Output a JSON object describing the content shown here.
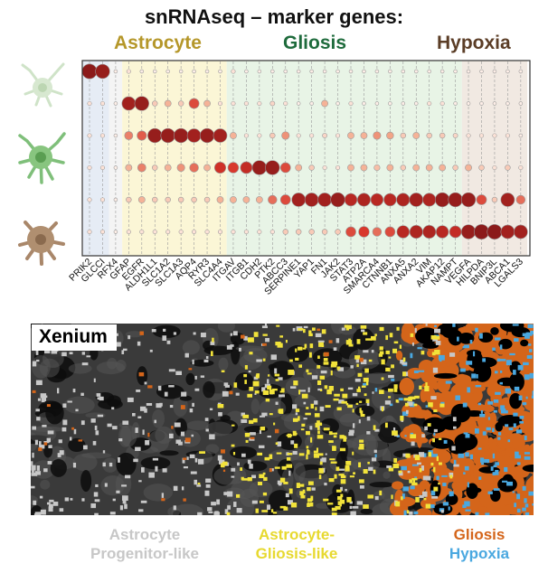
{
  "title": "snRNAseq – marker genes:",
  "categories": [
    {
      "label": "Astrocyte",
      "color": "#b5972a"
    },
    {
      "label": "Gliosis",
      "color": "#1e6b3c"
    },
    {
      "label": "Hypoxia",
      "color": "#5b3d26"
    }
  ],
  "genes": [
    "PRIK2",
    "GLCCI",
    "RFX4",
    "GFAP",
    "EGFR",
    "ALDH1L1",
    "SLC1A2",
    "SLC1A3",
    "AQP4",
    "RYR3",
    "SLC4A4",
    "ITGAV",
    "ITGB1",
    "CDH2",
    "PTK2",
    "ABCC3",
    "SERPINE1",
    "YAP1",
    "FN1",
    "JAK2",
    "STAT3",
    "ATP2A",
    "SMARCA4",
    "CTNNB1",
    "ANXA5",
    "ANXA2",
    "VIM",
    "AKAP12",
    "NAMPT",
    "VEGFA",
    "HILPDA",
    "BNIP3L",
    "ABCA1",
    "LGALS3"
  ],
  "colors": {
    "astrocyte_band": "#fbf6d6",
    "gliosis_band": "#e8f4e6",
    "hypoxia_band": "#f1e9e2",
    "first_band": "#e6ecf5",
    "high_expr": "#8b1a1a",
    "low_expr": "#fbe9e2"
  },
  "cell_icons": [
    "astrocyte-icon-light",
    "astrocyte-icon-green",
    "astrocyte-icon-brown"
  ],
  "xenium": {
    "label": "Xenium",
    "legend": {
      "astro_progenitor": [
        "Astrocyte",
        "Progenitor-like"
      ],
      "astro_gliosis": [
        "Astrocyte-",
        "Gliosis-like"
      ],
      "gliosis": "Gliosis",
      "hypoxia": "Hypoxia"
    },
    "colors": {
      "astro_progenitor": "#c8c8c8",
      "astro_gliosis": "#f2e33a",
      "gliosis": "#d4651a",
      "hypoxia": "#4aa8e0",
      "background": "#3a3a3a"
    }
  },
  "chart_data": {
    "type": "dotplot",
    "title": "snRNAseq – marker genes:",
    "x": [
      "PRIK2",
      "GLCCI",
      "RFX4",
      "GFAP",
      "EGFR",
      "ALDH1L1",
      "SLC1A2",
      "SLC1A3",
      "AQP4",
      "RYR3",
      "SLC4A4",
      "ITGAV",
      "ITGB1",
      "CDH2",
      "PTK2",
      "ABCC3",
      "SERPINE1",
      "YAP1",
      "FN1",
      "JAK2",
      "STAT3",
      "ATP2A",
      "SMARCA4",
      "CTNNB1",
      "ANXA5",
      "ANXA2",
      "VIM",
      "AKAP12",
      "NAMPT",
      "VEGFA",
      "HILPDA",
      "BNIP3L",
      "ABCA1",
      "LGALS3"
    ],
    "rows": 6,
    "groups": [
      {
        "label": "Astrocyte",
        "genes": [
          "GFAP",
          "EGFR",
          "ALDH1L1",
          "SLC1A2",
          "SLC1A3",
          "AQP4",
          "RYR3",
          "SLC4A4"
        ]
      },
      {
        "label": "Gliosis",
        "genes": [
          "ITGAV",
          "ITGB1",
          "CDH2",
          "PTK2",
          "ABCC3",
          "SERPINE1",
          "YAP1",
          "FN1",
          "JAK2",
          "STAT3",
          "ATP2A",
          "SMARCA4",
          "CTNNB1",
          "ANXA5",
          "ANXA2",
          "VIM",
          "AKAP12",
          "NAMPT"
        ]
      },
      {
        "label": "Hypoxia",
        "genes": [
          "VEGFA",
          "HILPDA",
          "BNIP3L",
          "ABCA1",
          "LGALS3"
        ]
      }
    ],
    "expression": [
      [
        1.0,
        0.95,
        0.05,
        0.1,
        0.05,
        0.05,
        0.05,
        0.05,
        0.05,
        0.05,
        0.05,
        0.1,
        0.05,
        0.05,
        0.05,
        0.05,
        0.05,
        0.05,
        0.05,
        0.05,
        0.05,
        0.05,
        0.05,
        0.05,
        0.05,
        0.05,
        0.05,
        0.05,
        0.05,
        0.05,
        0.05,
        0.05,
        0.05,
        0.05
      ],
      [
        0.1,
        0.1,
        0.05,
        0.9,
        0.95,
        0.2,
        0.3,
        0.2,
        0.6,
        0.3,
        0.1,
        0.1,
        0.1,
        0.1,
        0.15,
        0.1,
        0.05,
        0.05,
        0.3,
        0.05,
        0.1,
        0.05,
        0.05,
        0.05,
        0.05,
        0.05,
        0.1,
        0.1,
        0.05,
        0.05,
        0.05,
        0.05,
        0.05,
        0.05
      ],
      [
        0.1,
        0.1,
        0.05,
        0.45,
        0.55,
        0.95,
        0.95,
        0.95,
        0.9,
        0.95,
        0.9,
        0.3,
        0.1,
        0.1,
        0.2,
        0.4,
        0.1,
        0.1,
        0.15,
        0.1,
        0.3,
        0.3,
        0.4,
        0.35,
        0.2,
        0.3,
        0.2,
        0.2,
        0.15,
        0.1,
        0.1,
        0.1,
        0.1,
        0.05
      ],
      [
        0.1,
        0.1,
        0.05,
        0.3,
        0.45,
        0.2,
        0.3,
        0.4,
        0.5,
        0.3,
        0.7,
        0.65,
        0.75,
        0.95,
        0.95,
        0.6,
        0.3,
        0.2,
        0.1,
        0.1,
        0.3,
        0.3,
        0.25,
        0.3,
        0.2,
        0.3,
        0.3,
        0.3,
        0.2,
        0.3,
        0.2,
        0.1,
        0.2,
        0.1
      ],
      [
        0.1,
        0.1,
        0.05,
        0.2,
        0.3,
        0.2,
        0.2,
        0.2,
        0.2,
        0.2,
        0.3,
        0.3,
        0.3,
        0.3,
        0.5,
        0.6,
        0.9,
        0.9,
        0.9,
        0.95,
        0.8,
        0.85,
        0.8,
        0.8,
        0.85,
        0.9,
        0.85,
        0.95,
        0.95,
        0.95,
        0.6,
        0.2,
        0.9,
        0.5
      ],
      [
        0.1,
        0.1,
        0.05,
        0.1,
        0.1,
        0.1,
        0.1,
        0.1,
        0.1,
        0.1,
        0.1,
        0.1,
        0.1,
        0.1,
        0.1,
        0.2,
        0.2,
        0.2,
        0.2,
        0.2,
        0.6,
        0.65,
        0.5,
        0.6,
        0.8,
        0.85,
        0.85,
        0.8,
        0.75,
        0.95,
        1.0,
        1.0,
        0.9,
        0.9
      ]
    ]
  }
}
